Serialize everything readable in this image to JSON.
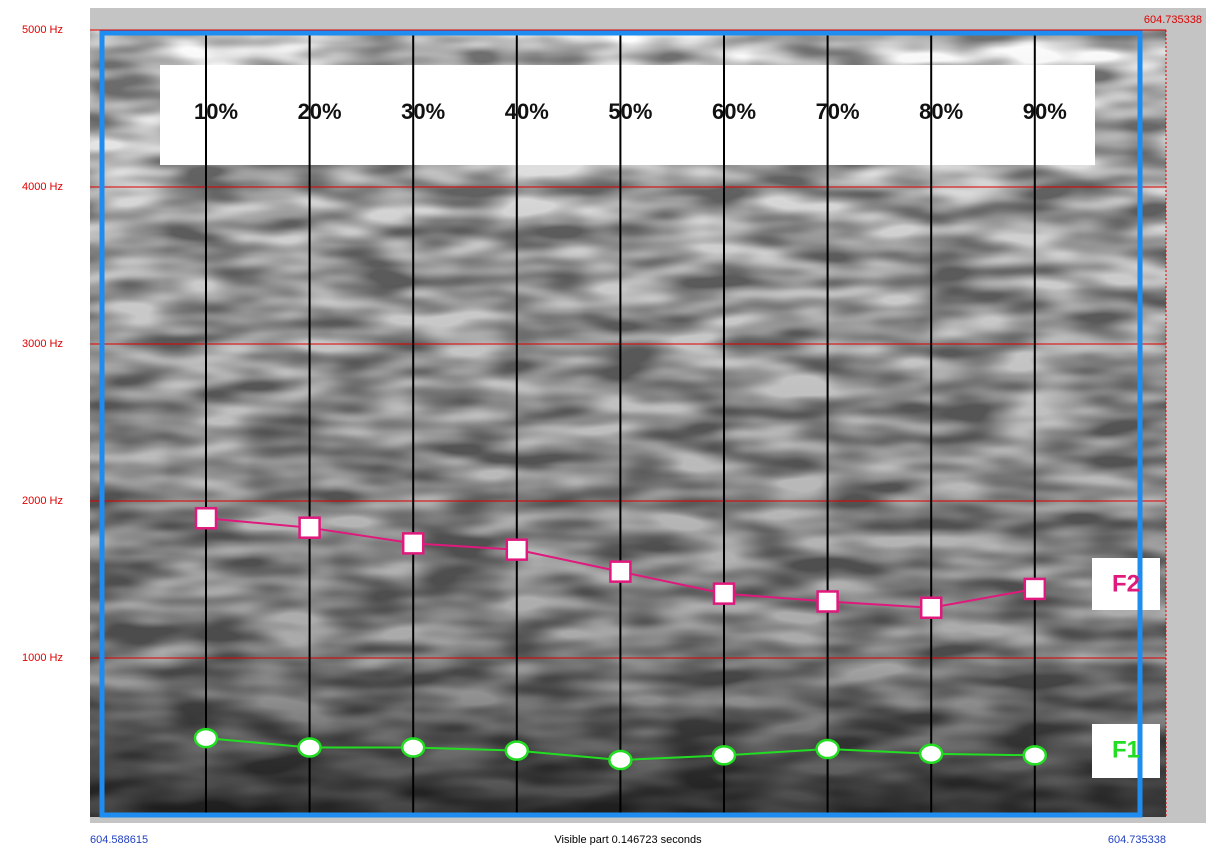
{
  "chart_data": {
    "type": "line",
    "categories": [
      "10%",
      "20%",
      "30%",
      "40%",
      "50%",
      "60%",
      "70%",
      "80%",
      "90%"
    ],
    "series": [
      {
        "name": "F2",
        "color": "#e0197d",
        "marker": "square",
        "values": [
          1890,
          1830,
          1730,
          1690,
          1550,
          1410,
          1360,
          1320,
          1440
        ]
      },
      {
        "name": "F1",
        "color": "#22dd22",
        "marker": "circle",
        "values": [
          490,
          430,
          430,
          410,
          350,
          380,
          420,
          390,
          380
        ]
      }
    ],
    "ylim": [
      0,
      5000
    ],
    "yticks": [
      {
        "value": 1000,
        "label": "1000 Hz"
      },
      {
        "value": 2000,
        "label": "2000 Hz"
      },
      {
        "value": 3000,
        "label": "3000 Hz"
      },
      {
        "value": 4000,
        "label": "4000 Hz"
      },
      {
        "value": 5000,
        "label": "5000 Hz"
      }
    ],
    "grid": true,
    "time_start": "604.588615",
    "time_end": "604.735338",
    "visible_part": "Visible part 0.146723 seconds"
  }
}
